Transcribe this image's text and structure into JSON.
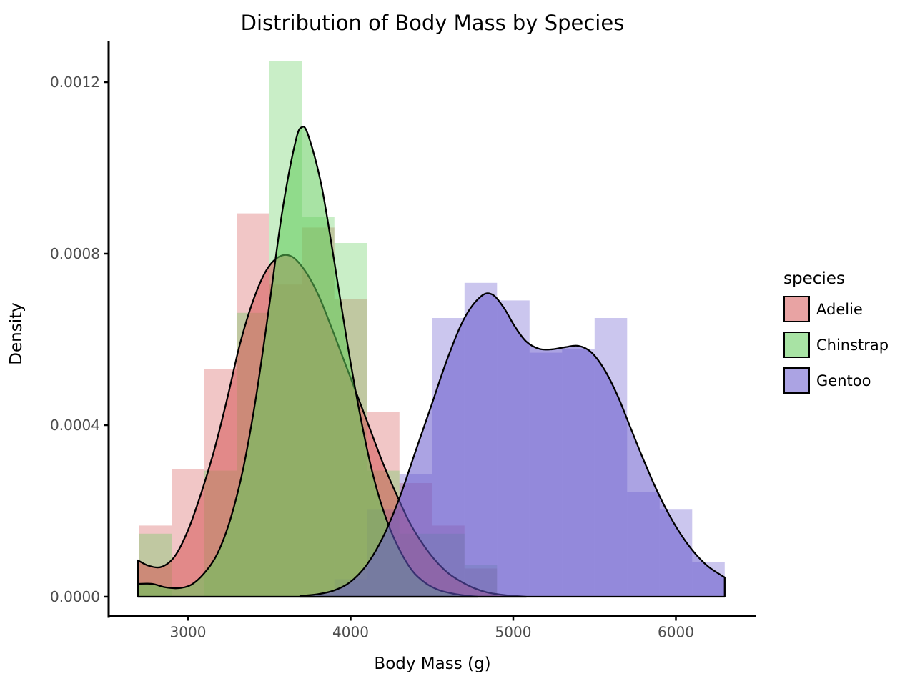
{
  "chart_data": {
    "type": "histogram+kde",
    "title": "Distribution of Body Mass by Species",
    "xlabel": "Body Mass (g)",
    "ylabel": "Density",
    "x_ticks": [
      3000,
      4000,
      5000,
      6000
    ],
    "y_tick_labels": [
      "0.0000",
      "0.0004",
      "0.0008",
      "0.0012"
    ],
    "y_tick_values_e4": [
      0,
      4,
      8,
      12
    ],
    "xlim": [
      2512,
      6480
    ],
    "ylim_e4": [
      0,
      13
    ],
    "grid": "off",
    "legend_position": "right",
    "bin_width": 200,
    "bar_alpha": 0.34,
    "fill_alpha": 0.55,
    "outline_color": "#000000",
    "axis_text_color": "#4d4d4d",
    "legend_title": "species",
    "series": [
      {
        "name": "Adelie",
        "base_color": "#D55858",
        "bins_start": 2700,
        "bar_densities_e4": [
          1.66,
          2.98,
          5.3,
          8.94,
          7.28,
          8.61,
          6.95,
          4.3,
          2.65,
          1.66,
          0.66
        ],
        "kde_e4": [
          [
            2692,
            0.85
          ],
          [
            2760,
            0.72
          ],
          [
            2840,
            0.7
          ],
          [
            2920,
            0.95
          ],
          [
            3000,
            1.55
          ],
          [
            3080,
            2.4
          ],
          [
            3160,
            3.4
          ],
          [
            3240,
            4.6
          ],
          [
            3320,
            5.9
          ],
          [
            3400,
            6.9
          ],
          [
            3480,
            7.6
          ],
          [
            3560,
            7.93
          ],
          [
            3640,
            7.93
          ],
          [
            3720,
            7.6
          ],
          [
            3800,
            7.05
          ],
          [
            3880,
            6.3
          ],
          [
            3960,
            5.5
          ],
          [
            4040,
            4.7
          ],
          [
            4120,
            3.9
          ],
          [
            4200,
            3.1
          ],
          [
            4280,
            2.4
          ],
          [
            4360,
            1.75
          ],
          [
            4440,
            1.25
          ],
          [
            4520,
            0.85
          ],
          [
            4600,
            0.55
          ],
          [
            4680,
            0.35
          ],
          [
            4760,
            0.2
          ],
          [
            4840,
            0.1
          ],
          [
            4920,
            0.05
          ],
          [
            5000,
            0.02
          ],
          [
            5080,
            0.0
          ]
        ]
      },
      {
        "name": "Chinstrap",
        "base_color": "#61CC5A",
        "bins_start": 2700,
        "bar_densities_e4": [
          1.47,
          0,
          2.94,
          6.62,
          12.5,
          8.85,
          8.25,
          2.94,
          1.47,
          1.47,
          0.74
        ],
        "kde_e4": [
          [
            2692,
            0.3
          ],
          [
            2780,
            0.3
          ],
          [
            2860,
            0.22
          ],
          [
            2940,
            0.2
          ],
          [
            3020,
            0.28
          ],
          [
            3100,
            0.55
          ],
          [
            3180,
            1.0
          ],
          [
            3260,
            1.8
          ],
          [
            3340,
            3.0
          ],
          [
            3420,
            4.7
          ],
          [
            3500,
            6.8
          ],
          [
            3580,
            9.0
          ],
          [
            3660,
            10.6
          ],
          [
            3700,
            10.95
          ],
          [
            3740,
            10.75
          ],
          [
            3820,
            9.6
          ],
          [
            3900,
            7.8
          ],
          [
            3980,
            5.9
          ],
          [
            4060,
            4.2
          ],
          [
            4140,
            2.8
          ],
          [
            4220,
            1.8
          ],
          [
            4300,
            1.1
          ],
          [
            4380,
            0.6
          ],
          [
            4460,
            0.32
          ],
          [
            4540,
            0.16
          ],
          [
            4620,
            0.08
          ],
          [
            4700,
            0.03
          ],
          [
            4780,
            0.0
          ]
        ]
      },
      {
        "name": "Gentoo",
        "base_color": "#6658CC",
        "bins_start": 3900,
        "bar_densities_e4": [
          0.41,
          2.03,
          2.85,
          6.5,
          7.32,
          6.91,
          5.69,
          5.77,
          6.5,
          2.44,
          2.03,
          0.81
        ],
        "kde_e4": [
          [
            3690,
            0.02
          ],
          [
            3800,
            0.06
          ],
          [
            3900,
            0.15
          ],
          [
            4000,
            0.35
          ],
          [
            4100,
            0.75
          ],
          [
            4200,
            1.4
          ],
          [
            4300,
            2.3
          ],
          [
            4400,
            3.4
          ],
          [
            4500,
            4.5
          ],
          [
            4600,
            5.6
          ],
          [
            4700,
            6.5
          ],
          [
            4800,
            7.0
          ],
          [
            4870,
            7.05
          ],
          [
            4940,
            6.75
          ],
          [
            5010,
            6.3
          ],
          [
            5080,
            5.95
          ],
          [
            5160,
            5.78
          ],
          [
            5240,
            5.77
          ],
          [
            5320,
            5.82
          ],
          [
            5400,
            5.85
          ],
          [
            5480,
            5.7
          ],
          [
            5560,
            5.3
          ],
          [
            5640,
            4.7
          ],
          [
            5720,
            3.95
          ],
          [
            5800,
            3.2
          ],
          [
            5880,
            2.5
          ],
          [
            5960,
            1.9
          ],
          [
            6040,
            1.4
          ],
          [
            6120,
            1.0
          ],
          [
            6200,
            0.7
          ],
          [
            6300,
            0.45
          ]
        ]
      }
    ]
  }
}
